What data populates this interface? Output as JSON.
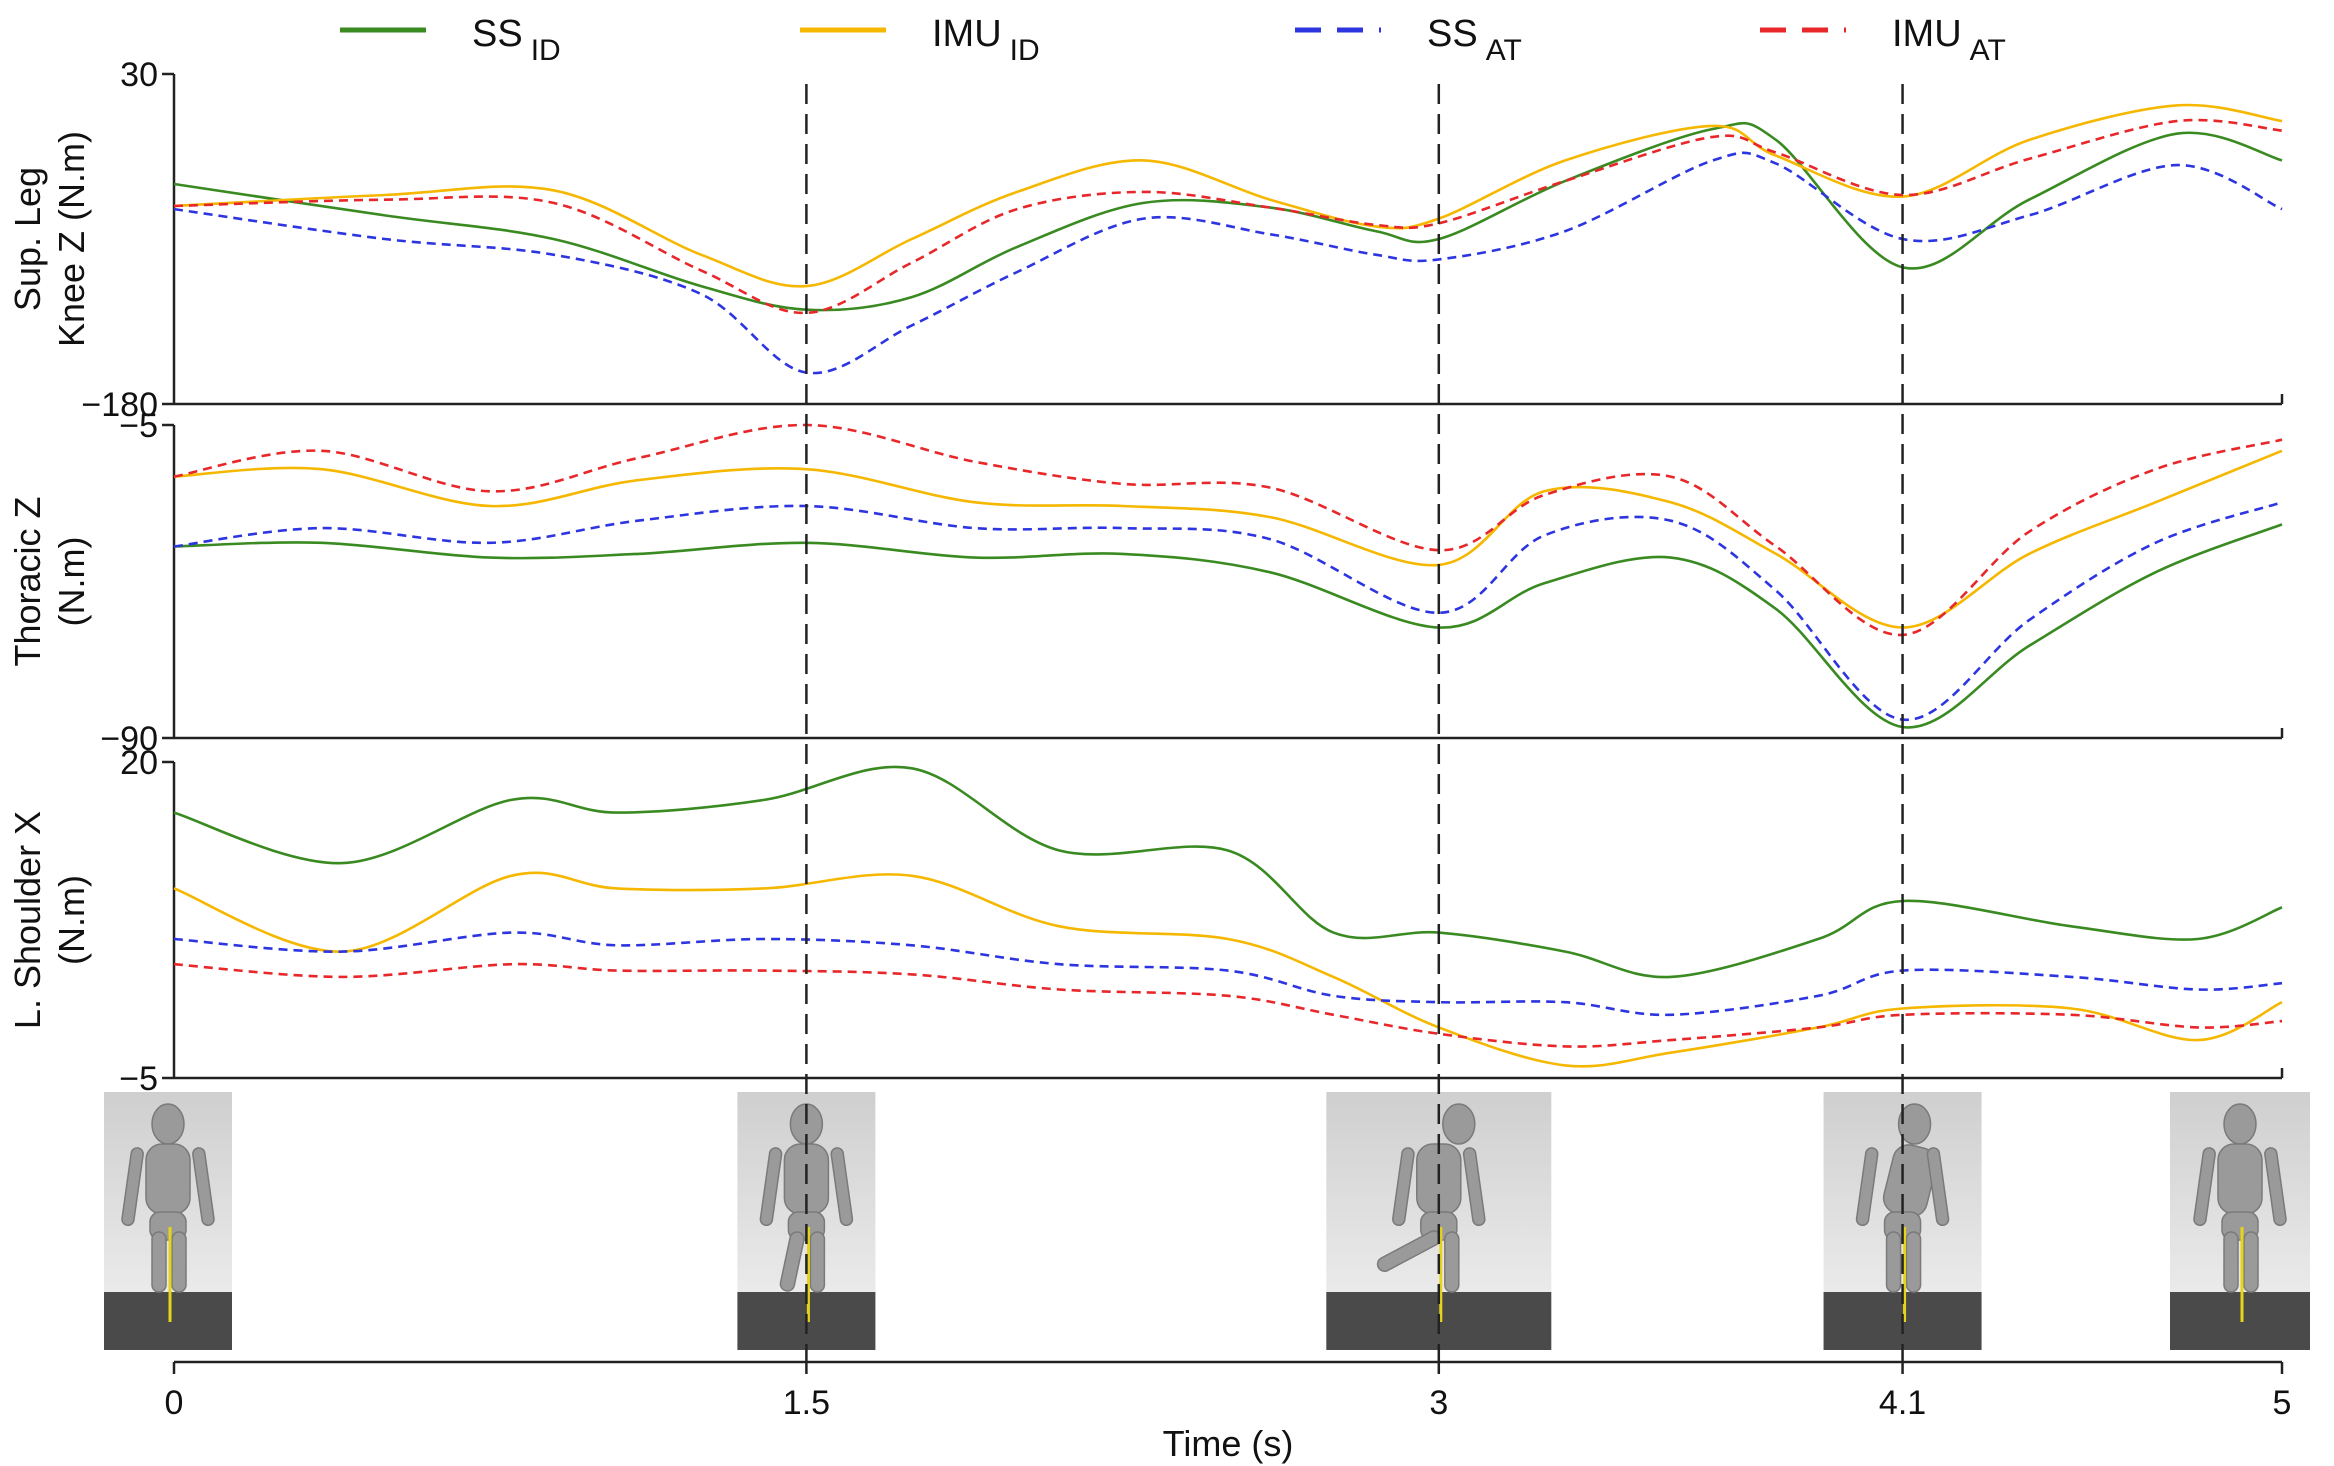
{
  "chart_data": {
    "type": "line",
    "xlabel": "Time (s)",
    "x_ticks": [
      "0",
      "1.5",
      "3",
      "4.1",
      "5"
    ],
    "xlim": [
      0,
      5
    ],
    "event_lines_x": [
      1.5,
      3,
      4.1
    ],
    "legend": [
      {
        "main": "SS",
        "sub": "ID",
        "color": "#3a8a22",
        "dash": false
      },
      {
        "main": "IMU",
        "sub": "ID",
        "color": "#f5b700",
        "dash": false
      },
      {
        "main": "SS",
        "sub": "AT",
        "color": "#2d35e0",
        "dash": true
      },
      {
        "main": "IMU",
        "sub": "AT",
        "color": "#e8272a",
        "dash": true
      }
    ],
    "colors": {
      "ss_id": "#3a8a22",
      "imu_id": "#f5b700",
      "ss_at": "#2d35e0",
      "imu_at": "#e8272a"
    },
    "panels": [
      {
        "ylabel_line1": "Sup. Leg",
        "ylabel_line2": "Knee Z (N.m)",
        "ylim": [
          -180,
          30
        ],
        "y_tick_labels": [
          "30",
          "−180"
        ],
        "x": [
          0,
          0.5,
          0.9,
          1.25,
          1.5,
          1.75,
          2.0,
          2.3,
          2.6,
          2.85,
          3.0,
          3.3,
          3.65,
          3.8,
          4.1,
          4.4,
          4.75,
          5.0
        ],
        "series": [
          {
            "key": "ss_id",
            "values": [
              -40,
              -60,
              -75,
              -105,
              -120,
              -112,
              -80,
              -52,
              -55,
              -70,
              -75,
              -38,
              -5,
              -12,
              -93,
              -50,
              -8,
              -25
            ]
          },
          {
            "key": "imu_id",
            "values": [
              -54,
              -47,
              -44,
              -85,
              -105,
              -75,
              -45,
              -25,
              -50,
              -67,
              -62,
              -25,
              -3,
              -22,
              -48,
              -12,
              10,
              0
            ]
          },
          {
            "key": "ss_at",
            "values": [
              -56,
              -75,
              -85,
              -110,
              -160,
              -130,
              -96,
              -62,
              -72,
              -85,
              -88,
              -70,
              -25,
              -27,
              -75,
              -60,
              -28,
              -56
            ]
          },
          {
            "key": "imu_at",
            "values": [
              -54,
              -50,
              -52,
              -95,
              -122,
              -90,
              -56,
              -45,
              -55,
              -66,
              -65,
              -38,
              -10,
              -20,
              -47,
              -24,
              0,
              -6
            ]
          }
        ]
      },
      {
        "ylabel_line1": "Thoracic Z",
        "ylabel_line2": "(N.m)",
        "ylim": [
          -90,
          -5
        ],
        "y_tick_labels": [
          "−5",
          "−90"
        ],
        "x": [
          0,
          0.35,
          0.75,
          1.1,
          1.5,
          1.9,
          2.25,
          2.6,
          3.0,
          3.25,
          3.55,
          3.8,
          4.1,
          4.4,
          4.7,
          5.0
        ],
        "series": [
          {
            "key": "ss_id",
            "values": [
              -38,
              -37,
              -41,
              -40,
              -37,
              -41,
              -40,
              -45,
              -60,
              -48,
              -41,
              -55,
              -87,
              -65,
              -45,
              -32
            ]
          },
          {
            "key": "imu_id",
            "values": [
              -19,
              -17,
              -27,
              -20,
              -17,
              -26,
              -27,
              -30,
              -43,
              -23,
              -26,
              -40,
              -60,
              -40,
              -26,
              -12
            ]
          },
          {
            "key": "ss_at",
            "values": [
              -38,
              -33,
              -37,
              -31,
              -27,
              -33,
              -33,
              -36,
              -56,
              -35,
              -31,
              -50,
              -85,
              -58,
              -37,
              -26
            ]
          },
          {
            "key": "imu_at",
            "values": [
              -19,
              -12,
              -23,
              -14,
              -5,
              -15,
              -21,
              -22,
              -39,
              -24,
              -19,
              -38,
              -62,
              -34,
              -17,
              -9
            ]
          }
        ]
      },
      {
        "ylabel_line1": "L. Shoulder X",
        "ylabel_line2": "(N.m)",
        "ylim": [
          -5,
          20
        ],
        "y_tick_labels": [
          "20",
          "−5"
        ],
        "x": [
          0,
          0.4,
          0.8,
          1.05,
          1.4,
          1.75,
          2.1,
          2.5,
          2.75,
          3.0,
          3.3,
          3.55,
          3.9,
          4.1,
          4.5,
          4.8,
          5.0
        ],
        "series": [
          {
            "key": "ss_id",
            "values": [
              16,
              12,
              17,
              16,
              17,
              19.5,
              13,
              13,
              6.5,
              6.5,
              5,
              3,
              6,
              9,
              7,
              6,
              8.5
            ]
          },
          {
            "key": "imu_id",
            "values": [
              10,
              5,
              11,
              10,
              10,
              11,
              7,
              6,
              3,
              -1,
              -4,
              -3,
              -1,
              0.5,
              0.5,
              -2,
              1
            ]
          },
          {
            "key": "ss_at",
            "values": [
              6,
              5,
              6.5,
              5.5,
              6,
              5.5,
              4,
              3.5,
              1.5,
              1,
              1,
              0,
              1.5,
              3.5,
              3,
              2,
              2.5
            ]
          },
          {
            "key": "imu_at",
            "values": [
              4,
              3,
              4,
              3.5,
              3.5,
              3.2,
              2,
              1.5,
              0,
              -1.5,
              -2.5,
              -2,
              -1,
              0,
              0,
              -1,
              -0.5
            ]
          }
        ]
      }
    ],
    "figure_strip_x": [
      0,
      1.5,
      3,
      4.1,
      5
    ]
  }
}
